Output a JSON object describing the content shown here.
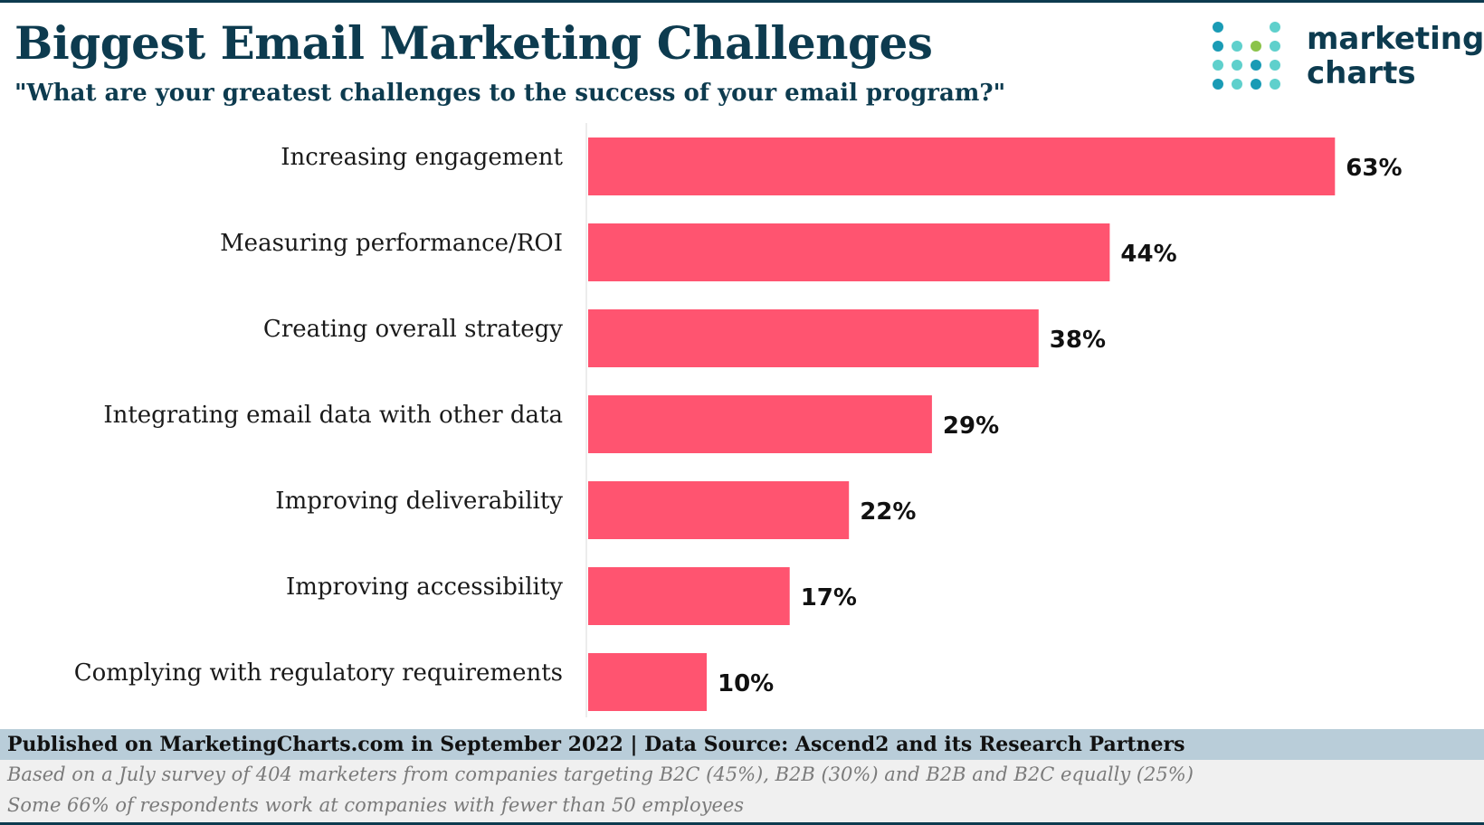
{
  "header": {
    "title": "Biggest Email Marketing Challenges",
    "subtitle": "\"What are your greatest challenges to the success of your email program?\""
  },
  "logo": {
    "line1": "marketing",
    "line2": "charts",
    "colors": [
      "#1a9bb5",
      "#5fd0cc",
      "#8bc34a"
    ]
  },
  "chart_data": {
    "type": "bar",
    "orientation": "horizontal",
    "title": "Biggest Email Marketing Challenges",
    "subtitle": "\"What are your greatest challenges to the success of your email program?\"",
    "categories": [
      "Increasing engagement",
      "Measuring performance/ROI",
      "Creating overall strategy",
      "Integrating email data with other data",
      "Improving deliverability",
      "Improving accessibility",
      "Complying with regulatory requirements"
    ],
    "values": [
      63,
      44,
      38,
      29,
      22,
      17,
      10
    ],
    "value_labels": [
      "63%",
      "44%",
      "38%",
      "29%",
      "22%",
      "17%",
      "10%"
    ],
    "unit": "%",
    "bar_color": "#ff5470",
    "xlim": [
      0,
      70
    ],
    "grid": false,
    "legend": "none"
  },
  "footer": {
    "published": "Published on MarketingCharts.com in September 2022 | Data Source: Ascend2 and its Research Partners",
    "note1": "Based on a July survey of 404 marketers from companies targeting B2C (45%), B2B (30%) and B2B and B2C equally (25%)",
    "note2": "Some 66% of respondents work at companies with fewer than 50 employees"
  }
}
